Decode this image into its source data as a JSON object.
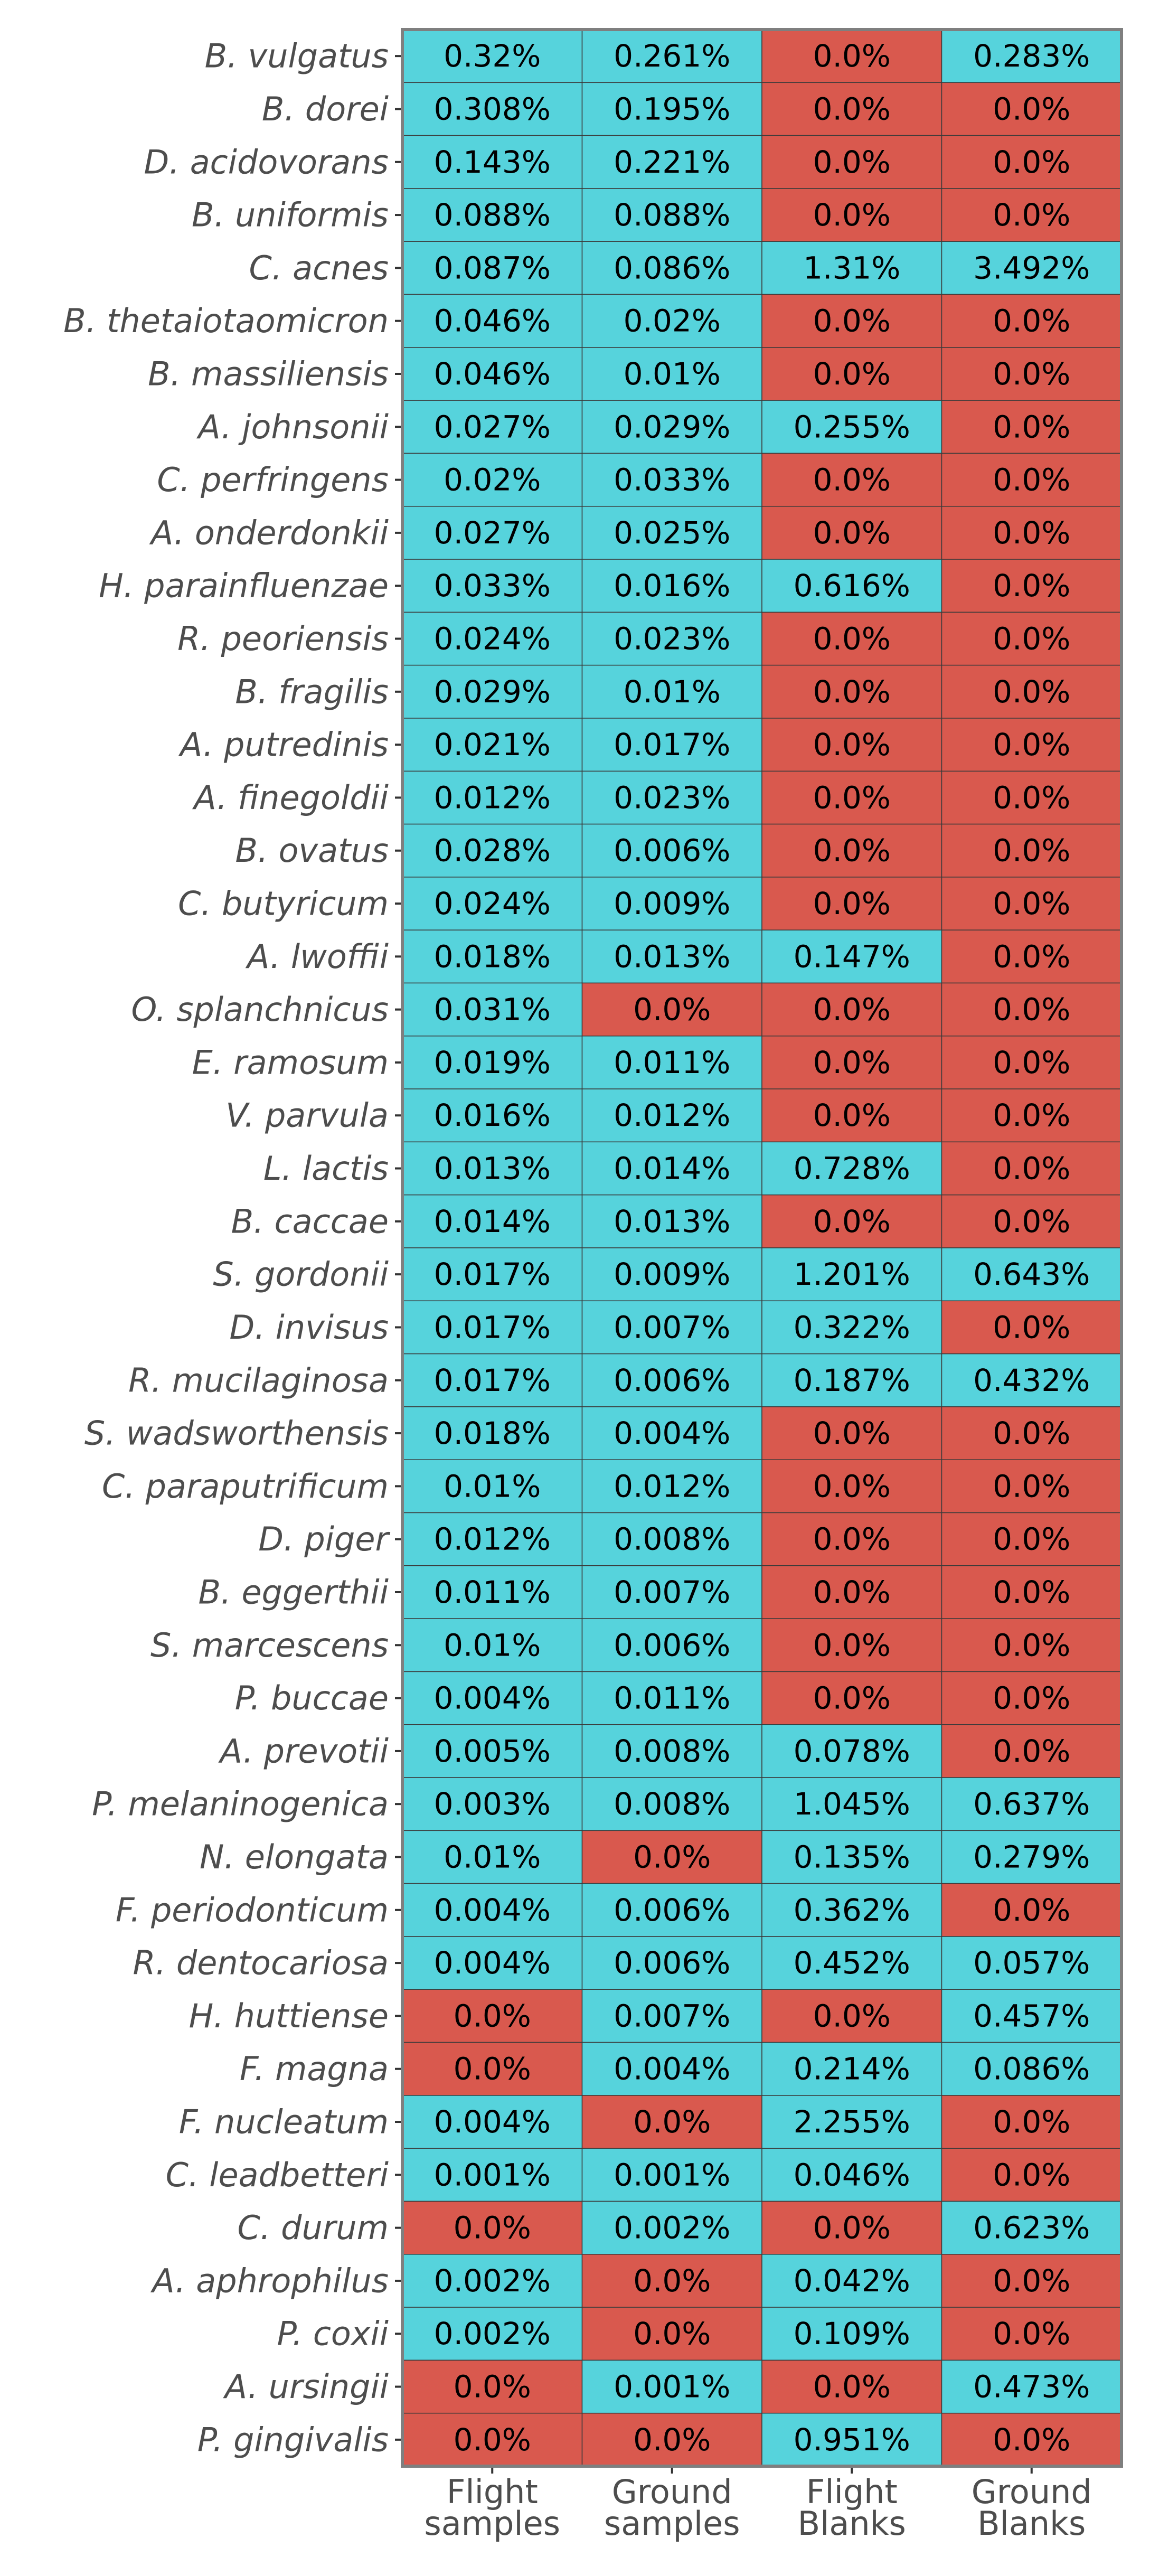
{
  "chart_data": {
    "type": "heatmap",
    "columns": [
      "Flight samples",
      "Ground samples",
      "Flight Blanks",
      "Ground Blanks"
    ],
    "column_label_lines": [
      [
        "Flight",
        "samples"
      ],
      [
        "Ground",
        "samples"
      ],
      [
        "Flight",
        "Blanks"
      ],
      [
        "Ground",
        "Blanks"
      ]
    ],
    "rows": [
      {
        "label": "B. vulgatus",
        "values": [
          "0.32%",
          "0.261%",
          "0.0%",
          "0.283%"
        ]
      },
      {
        "label": "B. dorei",
        "values": [
          "0.308%",
          "0.195%",
          "0.0%",
          "0.0%"
        ]
      },
      {
        "label": "D. acidovorans",
        "values": [
          "0.143%",
          "0.221%",
          "0.0%",
          "0.0%"
        ]
      },
      {
        "label": "B. uniformis",
        "values": [
          "0.088%",
          "0.088%",
          "0.0%",
          "0.0%"
        ]
      },
      {
        "label": "C. acnes",
        "values": [
          "0.087%",
          "0.086%",
          "1.31%",
          "3.492%"
        ]
      },
      {
        "label": "B. thetaiotaomicron",
        "values": [
          "0.046%",
          "0.02%",
          "0.0%",
          "0.0%"
        ]
      },
      {
        "label": "B. massiliensis",
        "values": [
          "0.046%",
          "0.01%",
          "0.0%",
          "0.0%"
        ]
      },
      {
        "label": "A. johnsonii",
        "values": [
          "0.027%",
          "0.029%",
          "0.255%",
          "0.0%"
        ]
      },
      {
        "label": "C. perfringens",
        "values": [
          "0.02%",
          "0.033%",
          "0.0%",
          "0.0%"
        ]
      },
      {
        "label": "A. onderdonkii",
        "values": [
          "0.027%",
          "0.025%",
          "0.0%",
          "0.0%"
        ]
      },
      {
        "label": "H. parainfluenzae",
        "values": [
          "0.033%",
          "0.016%",
          "0.616%",
          "0.0%"
        ]
      },
      {
        "label": "R. peoriensis",
        "values": [
          "0.024%",
          "0.023%",
          "0.0%",
          "0.0%"
        ]
      },
      {
        "label": "B. fragilis",
        "values": [
          "0.029%",
          "0.01%",
          "0.0%",
          "0.0%"
        ]
      },
      {
        "label": "A. putredinis",
        "values": [
          "0.021%",
          "0.017%",
          "0.0%",
          "0.0%"
        ]
      },
      {
        "label": "A. finegoldii",
        "values": [
          "0.012%",
          "0.023%",
          "0.0%",
          "0.0%"
        ]
      },
      {
        "label": "B. ovatus",
        "values": [
          "0.028%",
          "0.006%",
          "0.0%",
          "0.0%"
        ]
      },
      {
        "label": "C. butyricum",
        "values": [
          "0.024%",
          "0.009%",
          "0.0%",
          "0.0%"
        ]
      },
      {
        "label": "A. lwoffii",
        "values": [
          "0.018%",
          "0.013%",
          "0.147%",
          "0.0%"
        ]
      },
      {
        "label": "O. splanchnicus",
        "values": [
          "0.031%",
          "0.0%",
          "0.0%",
          "0.0%"
        ]
      },
      {
        "label": "E. ramosum",
        "values": [
          "0.019%",
          "0.011%",
          "0.0%",
          "0.0%"
        ]
      },
      {
        "label": "V. parvula",
        "values": [
          "0.016%",
          "0.012%",
          "0.0%",
          "0.0%"
        ]
      },
      {
        "label": "L. lactis",
        "values": [
          "0.013%",
          "0.014%",
          "0.728%",
          "0.0%"
        ]
      },
      {
        "label": "B. caccae",
        "values": [
          "0.014%",
          "0.013%",
          "0.0%",
          "0.0%"
        ]
      },
      {
        "label": "S. gordonii",
        "values": [
          "0.017%",
          "0.009%",
          "1.201%",
          "0.643%"
        ]
      },
      {
        "label": "D. invisus",
        "values": [
          "0.017%",
          "0.007%",
          "0.322%",
          "0.0%"
        ]
      },
      {
        "label": "R. mucilaginosa",
        "values": [
          "0.017%",
          "0.006%",
          "0.187%",
          "0.432%"
        ]
      },
      {
        "label": "S. wadsworthensis",
        "values": [
          "0.018%",
          "0.004%",
          "0.0%",
          "0.0%"
        ]
      },
      {
        "label": "C. paraputrificum",
        "values": [
          "0.01%",
          "0.012%",
          "0.0%",
          "0.0%"
        ]
      },
      {
        "label": "D. piger",
        "values": [
          "0.012%",
          "0.008%",
          "0.0%",
          "0.0%"
        ]
      },
      {
        "label": "B. eggerthii",
        "values": [
          "0.011%",
          "0.007%",
          "0.0%",
          "0.0%"
        ]
      },
      {
        "label": "S. marcescens",
        "values": [
          "0.01%",
          "0.006%",
          "0.0%",
          "0.0%"
        ]
      },
      {
        "label": "P. buccae",
        "values": [
          "0.004%",
          "0.011%",
          "0.0%",
          "0.0%"
        ]
      },
      {
        "label": "A. prevotii",
        "values": [
          "0.005%",
          "0.008%",
          "0.078%",
          "0.0%"
        ]
      },
      {
        "label": "P. melaninogenica",
        "values": [
          "0.003%",
          "0.008%",
          "1.045%",
          "0.637%"
        ]
      },
      {
        "label": "N. elongata",
        "values": [
          "0.01%",
          "0.0%",
          "0.135%",
          "0.279%"
        ]
      },
      {
        "label": "F. periodonticum",
        "values": [
          "0.004%",
          "0.006%",
          "0.362%",
          "0.0%"
        ]
      },
      {
        "label": "R. dentocariosa",
        "values": [
          "0.004%",
          "0.006%",
          "0.452%",
          "0.057%"
        ]
      },
      {
        "label": "H. huttiense",
        "values": [
          "0.0%",
          "0.007%",
          "0.0%",
          "0.457%"
        ]
      },
      {
        "label": "F. magna",
        "values": [
          "0.0%",
          "0.004%",
          "0.214%",
          "0.086%"
        ]
      },
      {
        "label": "F. nucleatum",
        "values": [
          "0.004%",
          "0.0%",
          "2.255%",
          "0.0%"
        ]
      },
      {
        "label": "C. leadbetteri",
        "values": [
          "0.001%",
          "0.001%",
          "0.046%",
          "0.0%"
        ]
      },
      {
        "label": "C. durum",
        "values": [
          "0.0%",
          "0.002%",
          "0.0%",
          "0.623%"
        ]
      },
      {
        "label": "A. aphrophilus",
        "values": [
          "0.002%",
          "0.0%",
          "0.042%",
          "0.0%"
        ]
      },
      {
        "label": "P. coxii",
        "values": [
          "0.002%",
          "0.0%",
          "0.109%",
          "0.0%"
        ]
      },
      {
        "label": "A. ursingii",
        "values": [
          "0.0%",
          "0.001%",
          "0.0%",
          "0.473%"
        ]
      },
      {
        "label": "P. gingivalis",
        "values": [
          "0.0%",
          "0.0%",
          "0.951%",
          "0.0%"
        ]
      }
    ],
    "colors": {
      "present": "#56d3dc",
      "absent": "#d9594e",
      "cell_border": "#3a3a3a",
      "panel_border": "#7f7f7f",
      "label": "#4d4d4d"
    }
  }
}
